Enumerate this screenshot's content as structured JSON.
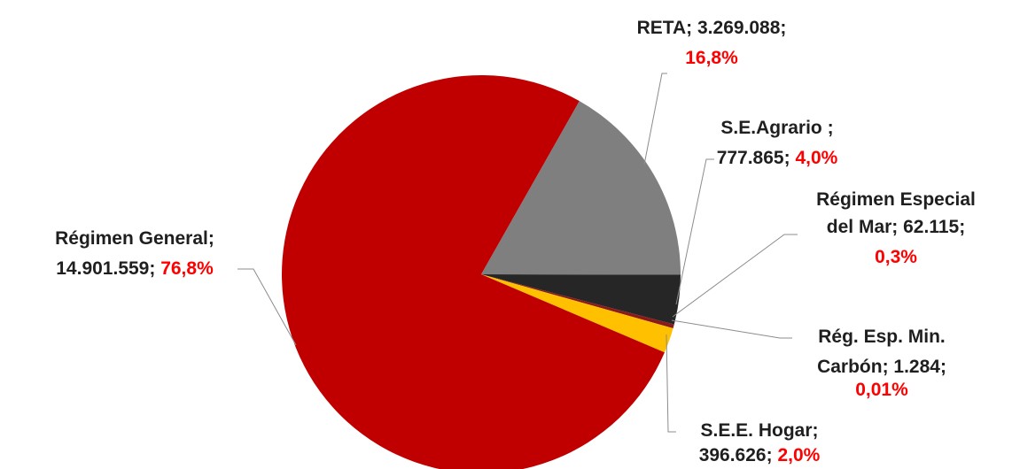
{
  "chart_data": {
    "type": "pie",
    "slices": [
      {
        "name": "RETA",
        "value": 3269088,
        "value_label": "3.269.088",
        "percent_label": "16,8%",
        "color": "#7f7f7f"
      },
      {
        "name": "S.E.Agrario",
        "value": 777865,
        "value_label": "777.865",
        "percent_label": "4,0%",
        "color": "#262626"
      },
      {
        "name": "Régimen Especial del Mar",
        "value": 62115,
        "value_label": "62.115",
        "percent_label": "0,3%",
        "color": "#8b1a1a"
      },
      {
        "name": "Rég. Esp. Min. Carbón",
        "value": 1284,
        "value_label": "1.284",
        "percent_label": "0,01%",
        "color": "#1f3864"
      },
      {
        "name": "S.E.E. Hogar",
        "value": 396626,
        "value_label": "396.626",
        "percent_label": "2,0%",
        "color": "#ffc000"
      },
      {
        "name": "Régimen General",
        "value": 14901559,
        "value_label": "14.901.559",
        "percent_label": "76,8%",
        "color": "#c00000"
      }
    ],
    "labels": {
      "reta": {
        "line1": "RETA; 3.269.088;",
        "line2_pct": "16,8%"
      },
      "agrario": {
        "line1": "S.E.Agrario ;",
        "line2_val": "777.865;",
        "line2_pct": "4,0%"
      },
      "mar": {
        "line1": "Régimen Especial",
        "line2": "del Mar; 62.115;",
        "line3_pct": "0,3%"
      },
      "carbon": {
        "line1": "Rég.  Esp. Min.",
        "line2": "Carbón; 1.284;",
        "line3_pct": "0,01%"
      },
      "hogar": {
        "line1": "S.E.E. Hogar;",
        "line2_val": "396.626;",
        "line2_pct": "2,0%"
      },
      "general": {
        "line1": "Régimen General;",
        "line2_val": "14.901.559;",
        "line2_pct": "76,8%"
      }
    }
  }
}
